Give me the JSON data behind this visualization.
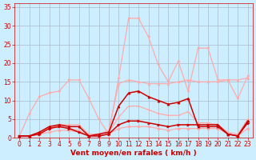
{
  "background_color": "#cceeff",
  "grid_color": "#aabbcc",
  "xlabel": "Vent moyen/en rafales ( km/h )",
  "xlabel_color": "#cc0000",
  "xlabel_fontsize": 6.5,
  "tick_color": "#cc0000",
  "tick_fontsize": 5.5,
  "ylim": [
    0,
    36
  ],
  "xlim": [
    -0.5,
    23.5
  ],
  "yticks": [
    0,
    5,
    10,
    15,
    20,
    25,
    30,
    35
  ],
  "xticks": [
    0,
    1,
    2,
    3,
    4,
    5,
    6,
    7,
    8,
    9,
    10,
    11,
    12,
    13,
    14,
    15,
    16,
    17,
    18,
    19,
    20,
    21,
    22,
    23
  ],
  "series": [
    {
      "x": [
        0,
        1,
        2,
        3,
        4,
        5,
        6,
        7,
        8,
        9,
        10,
        11,
        12,
        13,
        14,
        15,
        16,
        17,
        18,
        19,
        20,
        21,
        22,
        23
      ],
      "y": [
        0.5,
        6.5,
        11,
        12,
        12.5,
        15.5,
        15.5,
        10.5,
        5,
        1,
        16,
        32,
        32,
        27,
        19.5,
        15,
        20.5,
        12.5,
        24,
        24,
        15.5,
        15.5,
        10.5,
        16.5
      ],
      "color": "#ffaaaa",
      "linewidth": 0.9,
      "marker": "v",
      "markersize": 2.0,
      "alpha": 1.0
    },
    {
      "x": [
        0,
        1,
        2,
        3,
        4,
        5,
        6,
        7,
        8,
        9,
        10,
        11,
        12,
        13,
        14,
        15,
        16,
        17,
        18,
        19,
        20,
        21,
        22,
        23
      ],
      "y": [
        0.5,
        0.5,
        1.5,
        2.5,
        3.5,
        3.5,
        3.5,
        1.0,
        1.0,
        2.0,
        14.5,
        15.5,
        15,
        14.5,
        14.5,
        14.5,
        15,
        15.5,
        15,
        15,
        15,
        15.5,
        15.5,
        16.0
      ],
      "color": "#ffaaaa",
      "linewidth": 0.9,
      "marker": "^",
      "markersize": 2.0,
      "alpha": 1.0
    },
    {
      "x": [
        0,
        1,
        2,
        3,
        4,
        5,
        6,
        7,
        8,
        9,
        10,
        11,
        12,
        13,
        14,
        15,
        16,
        17,
        18,
        19,
        20,
        21,
        22,
        23
      ],
      "y": [
        0.5,
        0.5,
        1.5,
        2.5,
        3.0,
        2.5,
        2.0,
        0.5,
        1.0,
        1.5,
        5.5,
        8.5,
        8.5,
        7.5,
        6.5,
        6.0,
        6.0,
        7.0,
        4.0,
        4.0,
        3.5,
        1.5,
        1.0,
        5.0
      ],
      "color": "#ffaaaa",
      "linewidth": 0.9,
      "marker": "+",
      "markersize": 2.5,
      "alpha": 1.0
    },
    {
      "x": [
        0,
        1,
        2,
        3,
        4,
        5,
        6,
        7,
        8,
        9,
        10,
        11,
        12,
        13,
        14,
        15,
        16,
        17,
        18,
        19,
        20,
        21,
        22,
        23
      ],
      "y": [
        0.5,
        0.5,
        1.0,
        1.5,
        2.0,
        2.0,
        1.5,
        0.5,
        0.5,
        1.0,
        2.5,
        3.0,
        3.0,
        3.0,
        2.5,
        2.0,
        2.5,
        2.5,
        2.5,
        2.5,
        2.5,
        1.0,
        0.5,
        2.5
      ],
      "color": "#ffaaaa",
      "linewidth": 0.9,
      "marker": "D",
      "markersize": 1.8,
      "alpha": 1.0
    },
    {
      "x": [
        0,
        1,
        2,
        3,
        4,
        5,
        6,
        7,
        8,
        9,
        10,
        11,
        12,
        13,
        14,
        15,
        16,
        17,
        18,
        19,
        20,
        21,
        22,
        23
      ],
      "y": [
        0.5,
        0.5,
        1.5,
        3.0,
        3.5,
        3.0,
        3.0,
        0.5,
        1.0,
        1.5,
        8.5,
        12.0,
        12.5,
        11.0,
        10.0,
        9.0,
        9.5,
        10.5,
        3.0,
        3.0,
        3.0,
        1.0,
        0.5,
        4.5
      ],
      "color": "#cc0000",
      "linewidth": 1.1,
      "marker": "^",
      "markersize": 2.2,
      "alpha": 1.0
    },
    {
      "x": [
        0,
        1,
        2,
        3,
        4,
        5,
        6,
        7,
        8,
        9,
        10,
        11,
        12,
        13,
        14,
        15,
        16,
        17,
        18,
        19,
        20,
        21,
        22,
        23
      ],
      "y": [
        0.5,
        0.5,
        1.0,
        2.5,
        3.0,
        2.5,
        1.5,
        0.5,
        0.5,
        1.0,
        3.5,
        4.5,
        4.5,
        4.0,
        3.5,
        3.0,
        3.5,
        3.5,
        3.5,
        3.5,
        3.5,
        1.0,
        0.5,
        4.0
      ],
      "color": "#cc0000",
      "linewidth": 1.1,
      "marker": ">",
      "markersize": 2.2,
      "alpha": 1.0
    }
  ]
}
